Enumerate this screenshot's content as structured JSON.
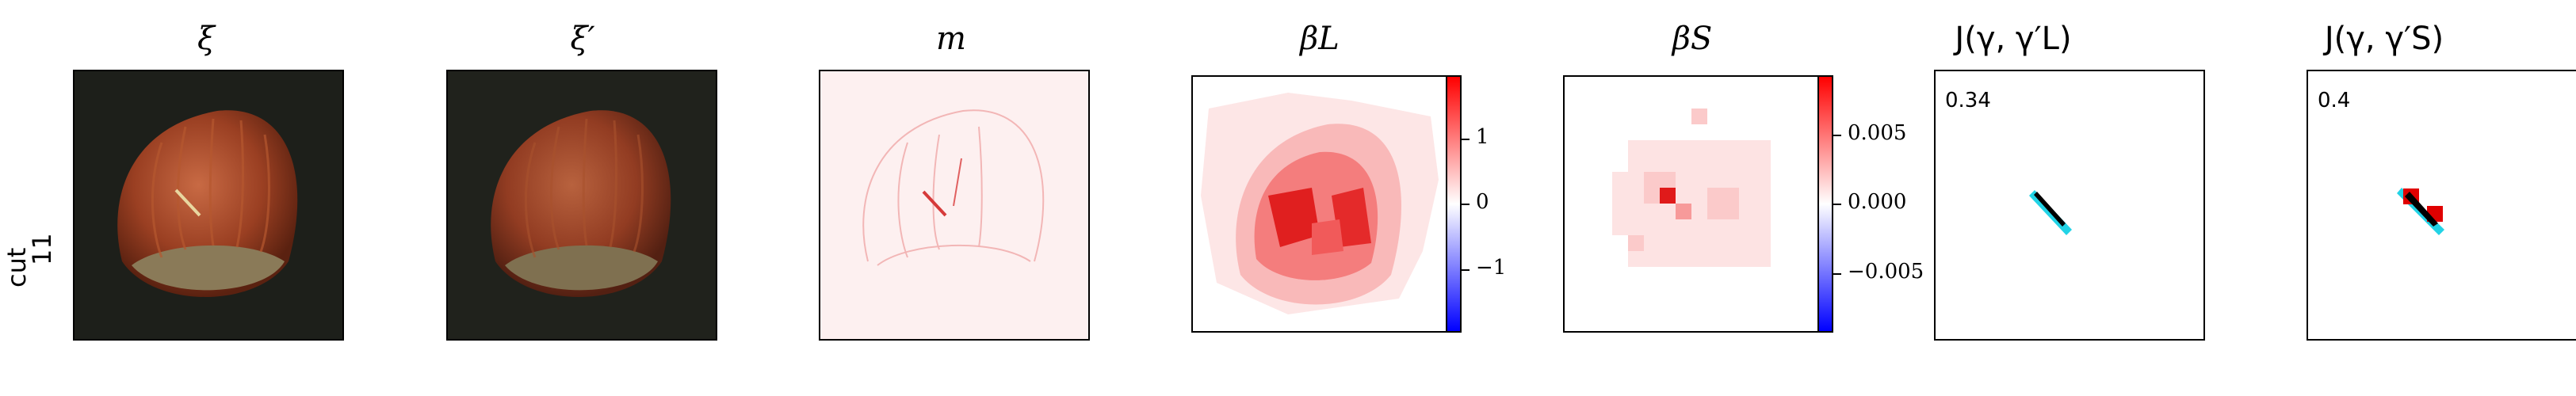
{
  "row_label": "cut\n11",
  "row_label_lines": [
    "cut",
    "11"
  ],
  "titles": {
    "xi": "ξ",
    "xi_prime": "ξ′",
    "m": "m",
    "beta_L": "βL",
    "beta_S": "βS",
    "j_L": "J(γ, γ′L)",
    "j_S": "J(γ, γ′S)"
  },
  "colorbar_L": {
    "ticks": [
      "1",
      "0",
      "−1"
    ],
    "colors": {
      "max": "#ff0000",
      "mid": "#ffffff",
      "min": "#0000ff"
    }
  },
  "colorbar_S": {
    "ticks": [
      "0.005",
      "0.000",
      "−0.005"
    ]
  },
  "scores": {
    "j_L": "0.34",
    "j_S": "0.4"
  },
  "colors": {
    "background": "#ffffff",
    "frame": "#000000",
    "hazelnut": "#a0482a",
    "overlay_cyan": "#22d3e6",
    "overlay_red": "#e00000"
  }
}
